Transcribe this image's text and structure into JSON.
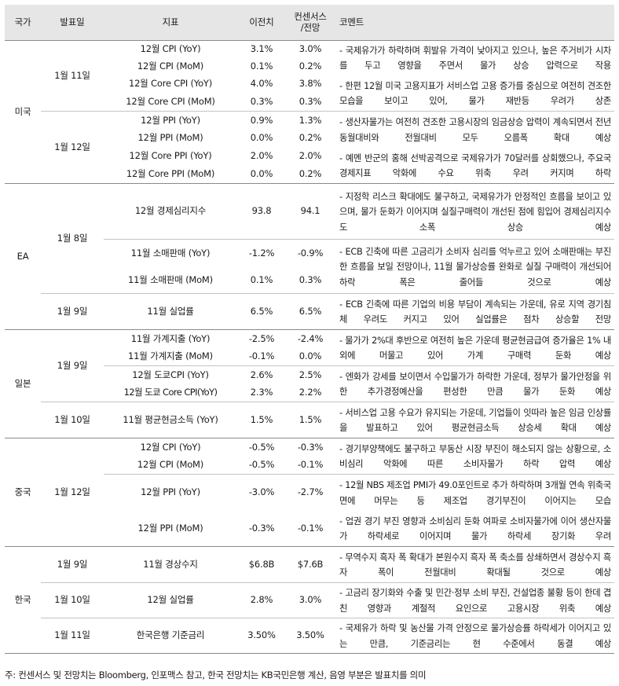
{
  "headers": {
    "country": "국가",
    "date": "발표일",
    "indicator": "지표",
    "previous": "이전치",
    "consensus_line1": "컨센서스",
    "consensus_line2": "/전망",
    "comment": "코멘트"
  },
  "sections": {
    "us": {
      "country": "미국",
      "d1": {
        "date": "1월 11일",
        "rows": [
          {
            "indicator": "12월 CPI (YoY)",
            "previous": "3.1%",
            "consensus": "3.0%"
          },
          {
            "indicator": "12월 CPI (MoM)",
            "previous": "0.1%",
            "consensus": "0.2%"
          },
          {
            "indicator": "12월 Core CPI (YoY)",
            "previous": "4.0%",
            "consensus": "3.8%"
          },
          {
            "indicator": "12월 Core CPI (MoM)",
            "previous": "0.3%",
            "consensus": "0.3%"
          }
        ],
        "comment1": "- 국제유가가 하락하며 휘발유 가격이 낮아지고 있으나, 높은 주거비가 시차를 두고 영향을 주면서 물가 상승 압력으로 작용",
        "comment2": "- 한편 12월 미국 고용지표가 서비스업 고용 증가를 중심으로 여전히 견조한 모습을 보이고 있어, 물가 재반등 우려가 상존"
      },
      "d2": {
        "date": "1월 12일",
        "rows": [
          {
            "indicator": "12월 PPI (YoY)",
            "previous": "0.9%",
            "consensus": "1.3%"
          },
          {
            "indicator": "12월 PPI (MoM)",
            "previous": "0.0%",
            "consensus": "0.2%"
          },
          {
            "indicator": "12월 Core PPI (YoY)",
            "previous": "2.0%",
            "consensus": "2.0%"
          },
          {
            "indicator": "12월 Core PPI (MoM)",
            "previous": "0.0%",
            "consensus": "0.2%"
          }
        ],
        "comment1": "- 생산자물가는 여전히 견조한 고용시장의 임금상승 압력이 계속되면서 전년동월대비와 전월대비 모두 오름폭 확대 예상",
        "comment2": "- 예멘 반군의 홍해 선박공격으로 국제유가가 70달러를 상회했으나, 주요국 경제지표 악화에 수요 위축 우려 커지며 하락"
      }
    },
    "ea": {
      "country": "EA",
      "d1": {
        "date": "1월 8일",
        "rows": [
          {
            "indicator": "12월 경제심리지수",
            "previous": "93.8",
            "consensus": "94.1"
          },
          {
            "indicator": "11월 소매판매 (YoY)",
            "previous": "-1.2%",
            "consensus": "-0.9%"
          },
          {
            "indicator": "11월 소매판매 (MoM)",
            "previous": "0.1%",
            "consensus": "0.3%"
          }
        ],
        "comment1": "- 지정학 리스크 확대에도 불구하고, 국제유가가 안정적인 흐름을 보이고 있으며, 물가 둔화가 이어지며 실질구매력이 개선된 점에 힘입어 경제심리지수도 소폭 상승 예상",
        "comment2": "- ECB 긴축에 따른 고금리가 소비자 심리를 억누르고 있어 소매판매는 부진한 흐름을 보일 전망이나, 11월 물가상승률 완화로 실질 구매력이 개선되어 하락 폭은 줄어들 것으로 예상"
      },
      "d2": {
        "date": "1월 9일",
        "rows": [
          {
            "indicator": "11월 실업률",
            "previous": "6.5%",
            "consensus": "6.5%"
          }
        ],
        "comment1": "- ECB 긴축에 따른 기업의 비용 부담이 계속되는 가운데, 유로 지역 경기침체 우려도 커지고 있어 실업률은 점차 상승할 전망"
      }
    },
    "jp": {
      "country": "일본",
      "d1": {
        "date": "1월 9일",
        "rows": [
          {
            "indicator": "11월 가계지출 (YoY)",
            "previous": "-2.5%",
            "consensus": "-2.4%"
          },
          {
            "indicator": "11월 가계지출 (MoM)",
            "previous": "-0.1%",
            "consensus": "0.0%"
          },
          {
            "indicator": "12월 도쿄CPI (YoY)",
            "previous": "2.6%",
            "consensus": "2.5%"
          },
          {
            "indicator": "12월 도쿄 Core CPI(YoY)",
            "previous": "2.3%",
            "consensus": "2.2%"
          }
        ],
        "comment1": "- 물가가 2%대 후반으로 여전히 높은 가운데 평균현금급여 증가율은 1% 내외에 머물고 있어 가계 구매력 둔화 예상",
        "comment2": "- 엔화가 강세를 보이면서 수입물가가 하락한 가운데, 정부가 물가안정을 위한 추가경정예산을 편성한 만큼 물가 둔화 예상"
      },
      "d2": {
        "date": "1월 10일",
        "rows": [
          {
            "indicator": "11월 평균현금소득 (YoY)",
            "previous": "1.5%",
            "consensus": "1.5%"
          }
        ],
        "comment1": "- 서비스업 고용 수요가 유지되는 가운데, 기업들이 잇따라 높은 임금 인상률을 발표하고 있어 평균현금소득 상승세 확대 예상"
      }
    },
    "cn": {
      "country": "중국",
      "d1": {
        "date": "1월 12일",
        "rows": [
          {
            "indicator": "12월 CPI (YoY)",
            "previous": "-0.5%",
            "consensus": "-0.3%"
          },
          {
            "indicator": "12월 CPI (MoM)",
            "previous": "-0.5%",
            "consensus": "-0.1%"
          },
          {
            "indicator": "12월 PPI (YoY)",
            "previous": "-3.0%",
            "consensus": "-2.7%"
          },
          {
            "indicator": "12월 PPI (MoM)",
            "previous": "-0.3%",
            "consensus": "-0.1%"
          }
        ],
        "comment1": "- 경기부양책에도 불구하고 부동산 시장 부진이 해소되지 않는 상황으로, 소비심리 악화에 따른 소비자물가 하락 압력 예상",
        "comment2": "- 12월 NBS 제조업 PMI가 49.0포인트로 추가 하락하며 3개월 연속 위축국면에 머무는 등 제조업 경기부진이 이어지는 모습",
        "comment3": "- 업권 경기 부진 영향과 소비심리 둔화 여파로 소비자물가에 이어 생산자물가 하락세로 이어지며 물가 하락세 장기화 우려"
      }
    },
    "kr": {
      "country": "한국",
      "d1": {
        "date": "1월 9일",
        "rows": [
          {
            "indicator": "11월 경상수지",
            "previous": "$6.8B",
            "consensus": "$7.6B"
          }
        ],
        "comment1": "- 무역수지 흑자 폭 확대가 본원수지 흑자 폭 축소를 상쇄하면서 경상수지 흑자 폭이 전월대비 확대될 것으로 예상"
      },
      "d2": {
        "date": "1월 10일",
        "rows": [
          {
            "indicator": "12월 실업률",
            "previous": "2.8%",
            "consensus": "3.0%"
          }
        ],
        "comment1": "- 고금리 장기화와 수출 및 민간·정부 소비 부진, 건설업종 불황 등이 한데 겹친 영향과 계절적 요인으로 고용시장 위축 예상"
      },
      "d3": {
        "date": "1월 11일",
        "rows": [
          {
            "indicator": "한국은행 기준금리",
            "previous": "3.50%",
            "consensus": "3.50%"
          }
        ],
        "comment1": "- 국제유가 하락 및 농산물 가격 안정으로 물가상승률 하락세가 이어지고 있는 만큼, 기준금리는 현 수준에서 동결 예상"
      }
    }
  },
  "footnote": "주: 컨센서스 및 전망치는 Bloomberg, 인포맥스 참고, 한국 전망치는 KB국민은행 계산, 음영 부분은 발표치를 의미"
}
